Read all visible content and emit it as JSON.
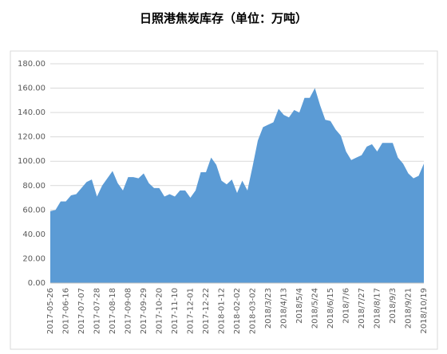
{
  "chart_data": {
    "type": "area",
    "title": "日照港焦炭库存（单位：万吨）",
    "categories": [
      "2017-05-26",
      null,
      null,
      "2017-06-16",
      null,
      null,
      "2017-07-07",
      null,
      null,
      "2017-07-28",
      null,
      null,
      "2017-08-18",
      null,
      null,
      "2017-09-08",
      null,
      null,
      "2017-09-29",
      null,
      null,
      "2017-10-20",
      null,
      null,
      "2017-11-10",
      null,
      null,
      "2017-12-01",
      null,
      null,
      "2017-12-22",
      null,
      null,
      "2018-01-12",
      null,
      null,
      "2018-02-02",
      null,
      null,
      "2018-03-02",
      null,
      null,
      "2018/3/23",
      null,
      null,
      "2018/4/13",
      null,
      null,
      "2018/5/4",
      null,
      null,
      "2018/5/24",
      null,
      null,
      "2018/6/15",
      null,
      null,
      "2018/7/6",
      null,
      null,
      "2018/7/27",
      null,
      null,
      "2018/8/17",
      null,
      null,
      "2018/9/3",
      null,
      null,
      "2018/9/21",
      null,
      null,
      "2018/10/19"
    ],
    "values": [
      59,
      60,
      67,
      67,
      72,
      73,
      78,
      83,
      85,
      71,
      80,
      86,
      92,
      82,
      76,
      87,
      87,
      86,
      90,
      82,
      78,
      78,
      71,
      73,
      71,
      76,
      76,
      70,
      76,
      91,
      91,
      103,
      97,
      84,
      81,
      85,
      74,
      84,
      76,
      96,
      117,
      128,
      130,
      132,
      143,
      138,
      136,
      142,
      140,
      152,
      152,
      160,
      146,
      134,
      133,
      126,
      121,
      108,
      101,
      103,
      105,
      112,
      114,
      108,
      115,
      115,
      115,
      103,
      98,
      90,
      86,
      88,
      98
    ],
    "color": "#5b9bd5",
    "ylim": [
      0,
      180
    ],
    "yticks": [
      {
        "value": 0,
        "label": "0.00"
      },
      {
        "value": 20,
        "label": "20.00"
      },
      {
        "value": 40,
        "label": "40.00"
      },
      {
        "value": 60,
        "label": "60.00"
      },
      {
        "value": 80,
        "label": "80.00"
      },
      {
        "value": 100,
        "label": "100.00"
      },
      {
        "value": 120,
        "label": "120.00"
      },
      {
        "value": 140,
        "label": "140.00"
      },
      {
        "value": 160,
        "label": "160.00"
      },
      {
        "value": 180,
        "label": "180.00"
      }
    ],
    "grid": true
  }
}
